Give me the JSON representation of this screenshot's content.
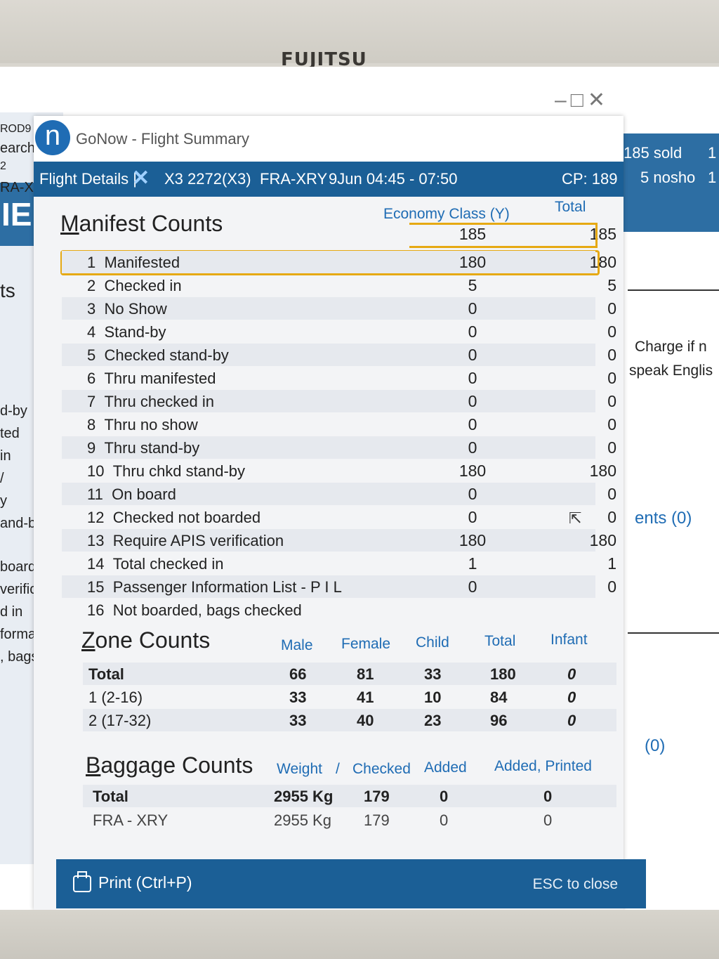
{
  "monitor": {
    "brand": "FUJITSU"
  },
  "background_left": {
    "tags": [
      "ROD9",
      "earch",
      "2",
      "RA-X",
      "IE",
      "ts",
      "d-by",
      "ted",
      "in",
      "/",
      "y",
      "and-by",
      "boarde",
      "verific",
      "d in",
      "format",
      ", bags c"
    ]
  },
  "background_right": {
    "sold": "185 sold",
    "nosho": "5 nosho",
    "col1": "1",
    "col2": "1",
    "charge": "Charge if n",
    "speak": "speak Englis",
    "ents": "ents (0)",
    "zero": "(0)"
  },
  "window": {
    "app_letter": "n",
    "title": "GoNow - Flight Summary",
    "flight_details": "Flight Details |",
    "flight_number": "X3 2272(X3)",
    "route": "FRA-XRY",
    "time": "9Jun 04:45 - 07:50",
    "cp": "CP: 189"
  },
  "manifest": {
    "title_first": "M",
    "title_rest": "anifest Counts",
    "col_economy": "Economy Class (Y)",
    "col_total": "Total",
    "header_economy": "185",
    "header_total": "185",
    "rows": [
      {
        "num": "1",
        "label": "Manifested",
        "economy": "180",
        "total": "180"
      },
      {
        "num": "2",
        "label": "Checked in",
        "economy": "5",
        "total": "5"
      },
      {
        "num": "3",
        "label": "No Show",
        "economy": "0",
        "total": "0"
      },
      {
        "num": "4",
        "label": "Stand-by",
        "economy": "0",
        "total": "0"
      },
      {
        "num": "5",
        "label": "Checked stand-by",
        "economy": "0",
        "total": "0"
      },
      {
        "num": "6",
        "label": "Thru manifested",
        "economy": "0",
        "total": "0"
      },
      {
        "num": "7",
        "label": "Thru checked in",
        "economy": "0",
        "total": "0"
      },
      {
        "num": "8",
        "label": "Thru no show",
        "economy": "0",
        "total": "0"
      },
      {
        "num": "9",
        "label": "Thru stand-by",
        "economy": "0",
        "total": "0"
      },
      {
        "num": "10",
        "label": "Thru chkd stand-by",
        "economy": "180",
        "total": "180"
      },
      {
        "num": "11",
        "label": "On board",
        "economy": "0",
        "total": "0"
      },
      {
        "num": "12",
        "label": "Checked not boarded",
        "economy": "0",
        "total": "0"
      },
      {
        "num": "13",
        "label": "Require APIS verification",
        "economy": "180",
        "total": "180"
      },
      {
        "num": "14",
        "label": "Total checked in",
        "economy": "1",
        "total": "1"
      },
      {
        "num": "15",
        "label": "Passenger Information List - P I L",
        "economy": "0",
        "total": "0"
      },
      {
        "num": "16",
        "label": "Not boarded, bags checked",
        "economy": "",
        "total": ""
      }
    ]
  },
  "zone": {
    "title_first": "Z",
    "title_rest": "one Counts",
    "headers": [
      "Male",
      "Female",
      "Child",
      "Total",
      "Infant"
    ],
    "rows": [
      {
        "name": "Total",
        "male": "66",
        "female": "81",
        "child": "33",
        "total": "180",
        "infant": "0"
      },
      {
        "name": "1 (2-16)",
        "male": "33",
        "female": "41",
        "child": "10",
        "total": "84",
        "infant": "0"
      },
      {
        "name": "2 (17-32)",
        "male": "33",
        "female": "40",
        "child": "23",
        "total": "96",
        "infant": "0"
      }
    ]
  },
  "baggage": {
    "title_first": "B",
    "title_rest": "aggage Counts",
    "headers": [
      "Weight",
      "/",
      "Checked",
      "Added",
      "Added, Printed"
    ],
    "rows": [
      {
        "name": "Total",
        "weight": "2955 Kg",
        "checked": "179",
        "added": "0",
        "printed": "0"
      },
      {
        "name": "FRA - XRY",
        "weight": "2955 Kg",
        "checked": "179",
        "added": "0",
        "printed": "0"
      }
    ]
  },
  "footer": {
    "print": "Print (Ctrl+P)",
    "esc": "ESC to close"
  }
}
